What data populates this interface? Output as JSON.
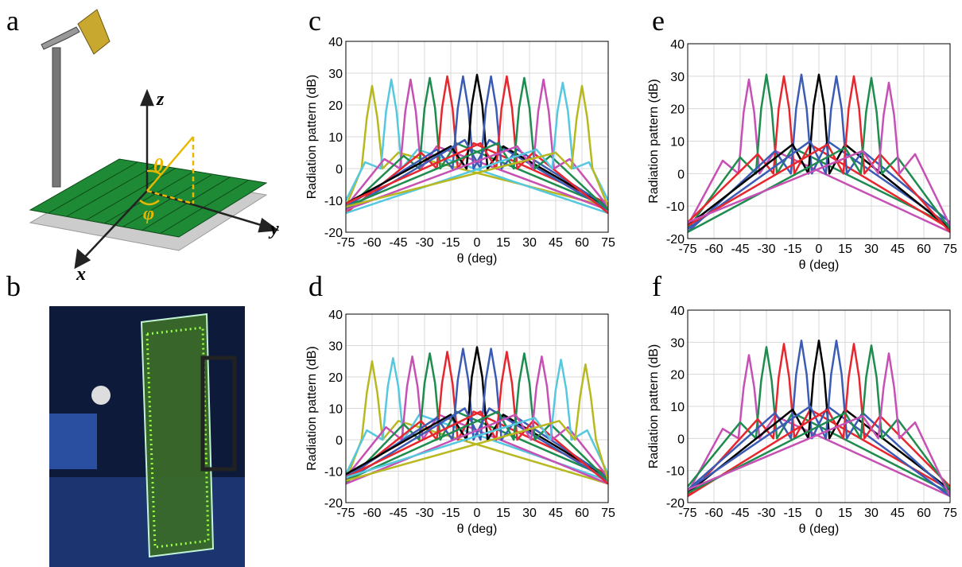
{
  "images": [
    {
      "label": "a",
      "axis_labels": [
        "z",
        "y",
        "x",
        "θ",
        "φ"
      ]
    },
    {
      "label": "b"
    }
  ],
  "chart_data": [
    {
      "type": "line",
      "label": "c",
      "xlabel": "θ (deg)",
      "ylabel": "Radiation pattern (dB)",
      "xlim": [
        -75,
        75
      ],
      "xticks": [
        -75,
        -60,
        -45,
        -30,
        -15,
        0,
        15,
        30,
        45,
        60,
        75
      ],
      "ylim": [
        -20,
        40
      ],
      "yticks": [
        -20,
        -10,
        0,
        10,
        20,
        30,
        40
      ],
      "grid": true,
      "series": [
        {
          "color": "#b8b820",
          "x": [
            -75,
            -66,
            -63,
            -60,
            -57,
            -54,
            -45,
            75
          ],
          "values": [
            -12,
            0,
            16,
            26,
            16,
            0,
            5,
            -12
          ]
        },
        {
          "color": "#55c8e0",
          "x": [
            -75,
            -64,
            -55,
            -52,
            -49,
            -46,
            -43,
            -34,
            75
          ],
          "values": [
            -10,
            2,
            0,
            18,
            28,
            18,
            0,
            6,
            -14
          ]
        },
        {
          "color": "#c650b4",
          "x": [
            -75,
            -53,
            -44,
            -41,
            -38,
            -35,
            -32,
            -23,
            75
          ],
          "values": [
            -12,
            3,
            0,
            18,
            28,
            18,
            0,
            7,
            -13
          ]
        },
        {
          "color": "#1e8c4e",
          "x": [
            -75,
            -42,
            -33,
            -30,
            -27,
            -24,
            -21,
            -12,
            75
          ],
          "values": [
            -13,
            4,
            0,
            19,
            28.5,
            19,
            0,
            8,
            -12
          ]
        },
        {
          "color": "#e8262e",
          "x": [
            -75,
            -32,
            -23,
            -20,
            -17,
            -14,
            -11,
            -2,
            75
          ],
          "values": [
            -14,
            5,
            0,
            19,
            29,
            19,
            0,
            8,
            -11
          ]
        },
        {
          "color": "#3b5bb5",
          "x": [
            -75,
            -23,
            -14,
            -11,
            -8,
            -5,
            -2,
            7,
            75
          ],
          "values": [
            -12,
            6,
            0,
            19,
            29,
            19,
            0,
            9,
            -13
          ]
        },
        {
          "color": "#000000",
          "x": [
            -75,
            -15,
            -6,
            -3,
            0,
            3,
            6,
            15,
            75
          ],
          "values": [
            -11,
            7,
            0,
            20,
            29.5,
            20,
            0,
            7,
            -12
          ]
        },
        {
          "color": "#3b5bb5",
          "x": [
            -75,
            -7,
            2,
            5,
            8,
            11,
            14,
            23,
            75
          ],
          "values": [
            -13,
            9,
            0,
            19,
            29,
            19,
            0,
            6,
            -12
          ]
        },
        {
          "color": "#e8262e",
          "x": [
            -75,
            2,
            11,
            14,
            17,
            20,
            23,
            32,
            75
          ],
          "values": [
            -11,
            8,
            0,
            19,
            29,
            19,
            0,
            5,
            -14
          ]
        },
        {
          "color": "#1e8c4e",
          "x": [
            -75,
            12,
            21,
            24,
            27,
            30,
            33,
            42,
            75
          ],
          "values": [
            -12,
            8,
            0,
            19,
            28.5,
            19,
            0,
            4,
            -13
          ]
        },
        {
          "color": "#c650b4",
          "x": [
            -75,
            23,
            32,
            35,
            38,
            41,
            44,
            53,
            75
          ],
          "values": [
            -13,
            7,
            0,
            18,
            28,
            18,
            0,
            3,
            -12
          ]
        },
        {
          "color": "#55c8e0",
          "x": [
            -75,
            34,
            43,
            46,
            49,
            52,
            55,
            64,
            75
          ],
          "values": [
            -14,
            6,
            0,
            18,
            27,
            18,
            0,
            2,
            -10
          ]
        },
        {
          "color": "#b8b820",
          "x": [
            -75,
            45,
            54,
            57,
            60,
            63,
            66,
            75
          ],
          "values": [
            -12,
            5,
            0,
            16,
            26,
            16,
            0,
            -12
          ]
        }
      ]
    },
    {
      "type": "line",
      "label": "d",
      "xlabel": "θ (deg)",
      "ylabel": "Radiation pattern (dB)",
      "xlim": [
        -75,
        75
      ],
      "xticks": [
        -75,
        -60,
        -45,
        -30,
        -15,
        0,
        15,
        30,
        45,
        60,
        75
      ],
      "ylim": [
        -20,
        40
      ],
      "yticks": [
        -20,
        -10,
        0,
        10,
        20,
        30,
        40
      ],
      "grid": true,
      "series": [
        {
          "color": "#b8b820",
          "x": [
            -75,
            -66,
            -63,
            -60,
            -57,
            -54,
            -45,
            75
          ],
          "values": [
            -13,
            0,
            15,
            25,
            15,
            0,
            6,
            -14
          ]
        },
        {
          "color": "#55c8e0",
          "x": [
            -75,
            -63,
            -54,
            -51,
            -48,
            -45,
            -42,
            -33,
            75
          ],
          "values": [
            -11,
            3,
            0,
            17,
            26,
            17,
            0,
            8,
            -13
          ]
        },
        {
          "color": "#c650b4",
          "x": [
            -75,
            -52,
            -43,
            -40,
            -37,
            -34,
            -31,
            -22,
            75
          ],
          "values": [
            -12,
            4,
            0,
            17,
            26.5,
            17,
            0,
            8,
            -14
          ]
        },
        {
          "color": "#1e8c4e",
          "x": [
            -75,
            -42,
            -33,
            -30,
            -27,
            -24,
            -21,
            -12,
            75
          ],
          "values": [
            -14,
            5,
            0,
            18,
            27.5,
            18,
            0,
            9,
            -12
          ]
        },
        {
          "color": "#e8262e",
          "x": [
            -75,
            -32,
            -23,
            -20,
            -17,
            -14,
            -11,
            -2,
            75
          ],
          "values": [
            -13,
            6,
            0,
            18,
            28,
            18,
            0,
            9,
            -11
          ]
        },
        {
          "color": "#3b5bb5",
          "x": [
            -75,
            -23,
            -14,
            -11,
            -8,
            -5,
            -2,
            7,
            75
          ],
          "values": [
            -12,
            7,
            0,
            19,
            29,
            19,
            0,
            10,
            -13
          ]
        },
        {
          "color": "#000000",
          "x": [
            -75,
            -15,
            -6,
            -3,
            0,
            3,
            6,
            15,
            75
          ],
          "values": [
            -11,
            8,
            0,
            20,
            29.5,
            20,
            0,
            8,
            -12
          ]
        },
        {
          "color": "#3b5bb5",
          "x": [
            -75,
            -7,
            2,
            5,
            8,
            11,
            14,
            23,
            75
          ],
          "values": [
            -13,
            10,
            0,
            19,
            29,
            19,
            0,
            7,
            -12
          ]
        },
        {
          "color": "#e8262e",
          "x": [
            -75,
            2,
            11,
            14,
            17,
            20,
            23,
            32,
            75
          ],
          "values": [
            -12,
            9,
            0,
            18,
            28,
            18,
            0,
            6,
            -14
          ]
        },
        {
          "color": "#1e8c4e",
          "x": [
            -75,
            12,
            21,
            24,
            27,
            30,
            33,
            42,
            75
          ],
          "values": [
            -13,
            9,
            0,
            18,
            27.5,
            18,
            0,
            5,
            -13
          ]
        },
        {
          "color": "#c650b4",
          "x": [
            -75,
            22,
            31,
            34,
            37,
            40,
            43,
            52,
            75
          ],
          "values": [
            -14,
            8,
            0,
            17,
            26.5,
            17,
            0,
            4,
            -12
          ]
        },
        {
          "color": "#55c8e0",
          "x": [
            -75,
            33,
            42,
            45,
            48,
            51,
            54,
            63,
            75
          ],
          "values": [
            -12,
            7,
            0,
            16,
            25.5,
            16,
            0,
            3,
            -11
          ]
        },
        {
          "color": "#b8b820",
          "x": [
            -75,
            47,
            56,
            59,
            62,
            65,
            68,
            75
          ],
          "values": [
            -13,
            6,
            0,
            14,
            24,
            14,
            0,
            -13
          ]
        }
      ]
    },
    {
      "type": "line",
      "label": "e",
      "xlabel": "θ (deg)",
      "ylabel": "Radiation pattern (dB)",
      "xlim": [
        -75,
        75
      ],
      "xticks": [
        -75,
        -60,
        -45,
        -30,
        -15,
        0,
        15,
        30,
        45,
        60,
        75
      ],
      "ylim": [
        -20,
        40
      ],
      "yticks": [
        -20,
        -10,
        0,
        10,
        20,
        30,
        40
      ],
      "grid": true,
      "series": [
        {
          "color": "#c650b4",
          "x": [
            -75,
            -55,
            -46,
            -43,
            -40,
            -37,
            -34,
            -25,
            75
          ],
          "values": [
            -16,
            4,
            0,
            19,
            29,
            19,
            0,
            7,
            -18
          ]
        },
        {
          "color": "#1e8c4e",
          "x": [
            -75,
            -45,
            -36,
            -33,
            -30,
            -27,
            -24,
            -15,
            75
          ],
          "values": [
            -17,
            5,
            0,
            20,
            30.5,
            20,
            0,
            8,
            -16
          ]
        },
        {
          "color": "#e8262e",
          "x": [
            -75,
            -35,
            -26,
            -23,
            -20,
            -17,
            -14,
            -5,
            75
          ],
          "values": [
            -15,
            6,
            0,
            20,
            30,
            20,
            0,
            9,
            -17
          ]
        },
        {
          "color": "#3b5bb5",
          "x": [
            -75,
            -25,
            -16,
            -13,
            -10,
            -7,
            -4,
            5,
            75
          ],
          "values": [
            -18,
            7,
            0,
            20,
            30.5,
            20,
            0,
            10,
            -16
          ]
        },
        {
          "color": "#000000",
          "x": [
            -75,
            -15,
            -6,
            -3,
            0,
            3,
            6,
            15,
            75
          ],
          "values": [
            -16,
            9,
            0,
            21,
            30.5,
            21,
            0,
            9,
            -17
          ]
        },
        {
          "color": "#3b5bb5",
          "x": [
            -75,
            -5,
            4,
            7,
            10,
            13,
            16,
            25,
            75
          ],
          "values": [
            -17,
            10,
            0,
            20,
            30,
            20,
            0,
            7,
            -15
          ]
        },
        {
          "color": "#e8262e",
          "x": [
            -75,
            5,
            14,
            17,
            20,
            23,
            26,
            35,
            75
          ],
          "values": [
            -16,
            9,
            0,
            20,
            30,
            20,
            0,
            6,
            -18
          ]
        },
        {
          "color": "#1e8c4e",
          "x": [
            -75,
            15,
            24,
            27,
            30,
            33,
            36,
            45,
            75
          ],
          "values": [
            -18,
            8,
            0,
            19,
            29.5,
            19,
            0,
            5,
            -17
          ]
        },
        {
          "color": "#c650b4",
          "x": [
            -75,
            25,
            34,
            37,
            40,
            43,
            46,
            55,
            75
          ],
          "values": [
            -15,
            7,
            0,
            18,
            28,
            18,
            0,
            6,
            -16
          ]
        }
      ]
    },
    {
      "type": "line",
      "label": "f",
      "xlabel": "θ (deg)",
      "ylabel": "Radiation pattern (dB)",
      "xlim": [
        -75,
        75
      ],
      "xticks": [
        -75,
        -60,
        -45,
        -30,
        -15,
        0,
        15,
        30,
        45,
        60,
        75
      ],
      "ylim": [
        -20,
        40
      ],
      "yticks": [
        -20,
        -10,
        0,
        10,
        20,
        30,
        40
      ],
      "grid": true,
      "series": [
        {
          "color": "#c650b4",
          "x": [
            -75,
            -55,
            -46,
            -43,
            -40,
            -37,
            -34,
            -25,
            75
          ],
          "values": [
            -17,
            3,
            0,
            16,
            26,
            16,
            0,
            7,
            -18
          ]
        },
        {
          "color": "#1e8c4e",
          "x": [
            -75,
            -45,
            -36,
            -33,
            -30,
            -27,
            -24,
            -15,
            75
          ],
          "values": [
            -15,
            5,
            0,
            18,
            28.5,
            18,
            0,
            8,
            -17
          ]
        },
        {
          "color": "#e8262e",
          "x": [
            -75,
            -35,
            -26,
            -23,
            -20,
            -17,
            -14,
            -5,
            75
          ],
          "values": [
            -18,
            6,
            0,
            19,
            29.5,
            19,
            0,
            9,
            -16
          ]
        },
        {
          "color": "#3b5bb5",
          "x": [
            -75,
            -25,
            -16,
            -13,
            -10,
            -7,
            -4,
            5,
            75
          ],
          "values": [
            -16,
            8,
            0,
            20,
            30.5,
            20,
            0,
            10,
            -18
          ]
        },
        {
          "color": "#000000",
          "x": [
            -75,
            -15,
            -6,
            -3,
            0,
            3,
            6,
            15,
            75
          ],
          "values": [
            -17,
            9,
            0,
            20,
            30.5,
            20,
            0,
            9,
            -16
          ]
        },
        {
          "color": "#3b5bb5",
          "x": [
            -75,
            -5,
            4,
            7,
            10,
            13,
            16,
            25,
            75
          ],
          "values": [
            -16,
            10,
            0,
            20,
            30.5,
            20,
            0,
            8,
            -17
          ]
        },
        {
          "color": "#e8262e",
          "x": [
            -75,
            5,
            14,
            17,
            20,
            23,
            26,
            35,
            75
          ],
          "values": [
            -18,
            9,
            0,
            19,
            29.5,
            19,
            0,
            7,
            -15
          ]
        },
        {
          "color": "#1e8c4e",
          "x": [
            -75,
            15,
            24,
            27,
            30,
            33,
            36,
            45,
            75
          ],
          "values": [
            -17,
            8,
            0,
            19,
            29,
            19,
            0,
            6,
            -16
          ]
        },
        {
          "color": "#c650b4",
          "x": [
            -75,
            25,
            34,
            37,
            40,
            43,
            46,
            55,
            75
          ],
          "values": [
            -16,
            7,
            0,
            16,
            26.5,
            16,
            0,
            5,
            -18
          ]
        }
      ]
    }
  ]
}
